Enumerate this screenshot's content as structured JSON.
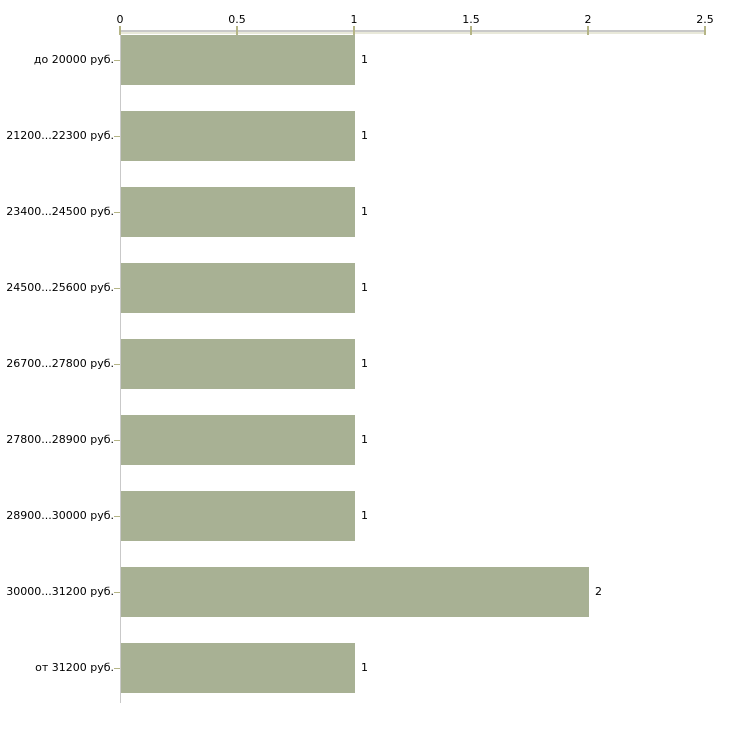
{
  "chart_data": {
    "type": "bar",
    "orientation": "horizontal",
    "title": "",
    "categories": [
      "до 20000 руб.",
      "21200...22300 руб.",
      "23400...24500 руб.",
      "24500...25600 руб.",
      "26700...27800 руб.",
      "27800...28900 руб.",
      "28900...30000 руб.",
      "30000...31200 руб.",
      "от 31200 руб."
    ],
    "values": [
      1,
      1,
      1,
      1,
      1,
      1,
      1,
      2,
      1
    ],
    "value_labels": [
      "1",
      "1",
      "1",
      "1",
      "1",
      "1",
      "1",
      "2",
      "1"
    ],
    "x_axis": {
      "position": "top",
      "range": [
        0,
        2.5
      ],
      "ticks": [
        0,
        0.5,
        1,
        1.5,
        2,
        2.5
      ],
      "tick_labels": [
        "0",
        "0.5",
        "1",
        "1.5",
        "2",
        "2.5"
      ]
    },
    "y_axis": {
      "position": "left"
    },
    "grid": false,
    "legend": false,
    "colors": {
      "bar": "#a8b194",
      "axis_line": "#c9c9c9",
      "axis_sub_line": "#e9e9da",
      "tick": "#b5b586",
      "text": "#000000",
      "background": "#ffffff"
    }
  }
}
